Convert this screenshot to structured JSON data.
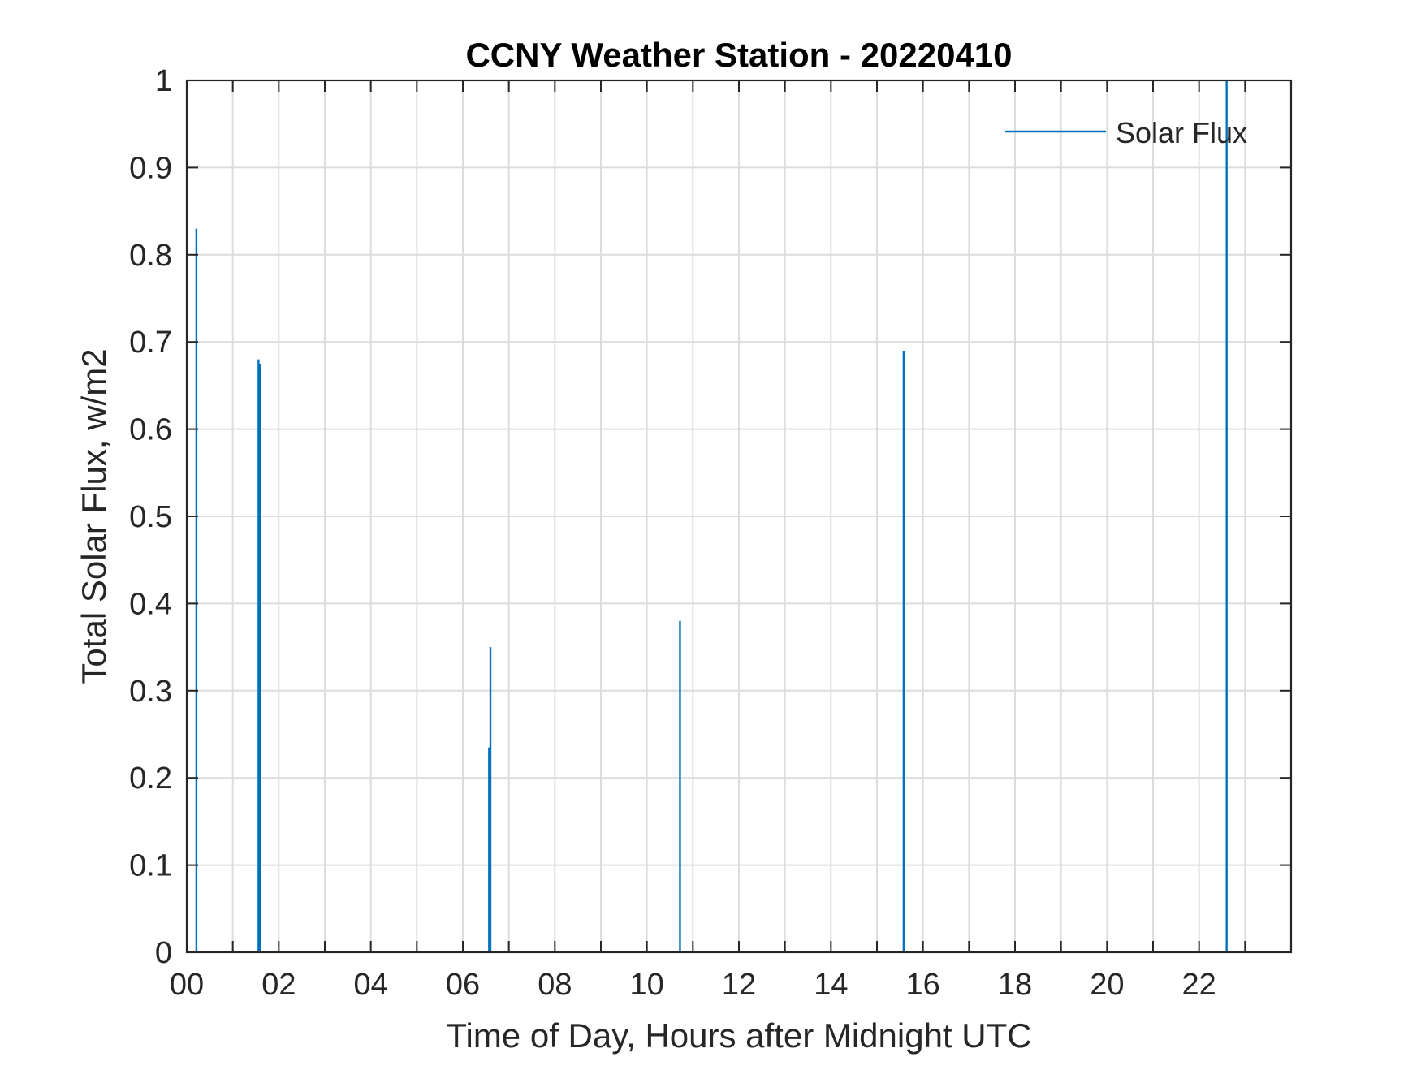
{
  "chart_data": {
    "type": "line",
    "title": "CCNY Weather Station - 20220410",
    "xlabel": "Time of Day, Hours after Midnight UTC",
    "ylabel": "Total Solar Flux, w/m2",
    "xlim": [
      0,
      24
    ],
    "ylim": [
      0,
      1
    ],
    "xticks": [
      0,
      2,
      4,
      6,
      8,
      10,
      12,
      14,
      16,
      18,
      20,
      22
    ],
    "xtick_labels": [
      "00",
      "02",
      "04",
      "06",
      "08",
      "10",
      "12",
      "14",
      "16",
      "18",
      "20",
      "22"
    ],
    "xgrid_step": 1,
    "yticks": [
      0,
      0.1,
      0.2,
      0.3,
      0.4,
      0.5,
      0.6,
      0.7,
      0.8,
      0.9,
      1
    ],
    "ytick_labels": [
      "0",
      "0.1",
      "0.2",
      "0.3",
      "0.4",
      "0.5",
      "0.6",
      "0.7",
      "0.8",
      "0.9",
      "1"
    ],
    "grid": true,
    "legend_position": "top-right",
    "series": [
      {
        "name": "Solar Flux",
        "color": "#0072BD",
        "spikes": [
          {
            "x": 0.21,
            "y": 0.83
          },
          {
            "x": 1.56,
            "y": 0.68
          },
          {
            "x": 1.6,
            "y": 0.675
          },
          {
            "x": 6.57,
            "y": 0.235
          },
          {
            "x": 6.6,
            "y": 0.35
          },
          {
            "x": 10.72,
            "y": 0.38
          },
          {
            "x": 15.58,
            "y": 0.69
          },
          {
            "x": 22.6,
            "y": 1.0
          }
        ]
      }
    ]
  }
}
